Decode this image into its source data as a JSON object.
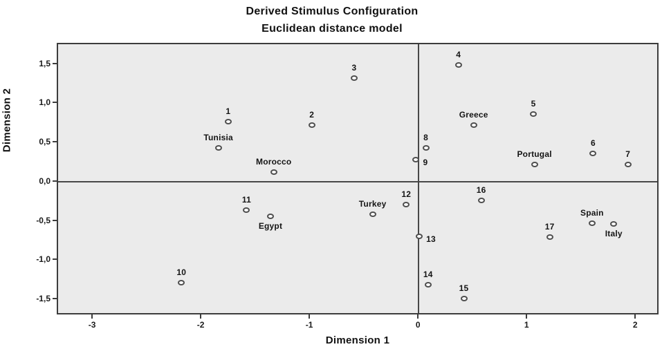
{
  "chart_data": {
    "type": "scatter",
    "title": "Derived Stimulus Configuration",
    "subtitle": "Euclidean distance model",
    "xlabel": "Dimension 1",
    "ylabel": "Dimension 2",
    "xlim": [
      -3.325,
      2.215
    ],
    "ylim": [
      -1.7,
      1.76
    ],
    "grid": false,
    "legend": "none",
    "zero_lines": true,
    "plot_bg_color": "#ebebeb",
    "axis_line_color": "#474747",
    "point_stroke_color": "#4f4f4f",
    "point_fill_color": "#ffffff",
    "text_color": "#141414",
    "x_ticks": {
      "values": [
        -3,
        -2,
        -1,
        0,
        1,
        2
      ],
      "labels": [
        "-3",
        "-2",
        "-1",
        "0",
        "1",
        "2"
      ]
    },
    "y_ticks": {
      "values": [
        1.5,
        1.0,
        0.5,
        0.0,
        -0.5,
        -1.0,
        -1.5
      ],
      "labels": [
        "1,5",
        "1,0",
        "0,5",
        "0,0",
        "-0,5",
        "-1,0",
        "-1,5"
      ]
    },
    "points": [
      {
        "label": "1",
        "x": -1.76,
        "y": 0.77,
        "label_pos": "top"
      },
      {
        "label": "2",
        "x": -0.99,
        "y": 0.73,
        "label_pos": "top"
      },
      {
        "label": "3",
        "x": -0.6,
        "y": 1.33,
        "label_pos": "top"
      },
      {
        "label": "4",
        "x": 0.36,
        "y": 1.5,
        "label_pos": "top"
      },
      {
        "label": "5",
        "x": 1.05,
        "y": 0.87,
        "label_pos": "top"
      },
      {
        "label": "6",
        "x": 1.6,
        "y": 0.37,
        "label_pos": "top"
      },
      {
        "label": "7",
        "x": 1.92,
        "y": 0.23,
        "label_pos": "top"
      },
      {
        "label": "8",
        "x": 0.06,
        "y": 0.44,
        "label_pos": "top"
      },
      {
        "label": "9",
        "x": -0.03,
        "y": 0.29,
        "label_pos": "right"
      },
      {
        "label": "10",
        "x": -2.19,
        "y": -1.28,
        "label_pos": "top"
      },
      {
        "label": "11",
        "x": -1.59,
        "y": -0.35,
        "label_pos": "top"
      },
      {
        "label": "12",
        "x": -0.12,
        "y": -0.28,
        "label_pos": "top"
      },
      {
        "label": "13",
        "x": 0.0,
        "y": -0.69,
        "label_pos": "right"
      },
      {
        "label": "14",
        "x": 0.08,
        "y": -1.3,
        "label_pos": "top"
      },
      {
        "label": "15",
        "x": 0.41,
        "y": -1.48,
        "label_pos": "top"
      },
      {
        "label": "16",
        "x": 0.57,
        "y": -0.23,
        "label_pos": "top"
      },
      {
        "label": "17",
        "x": 1.2,
        "y": -0.7,
        "label_pos": "top"
      },
      {
        "label": "Tunisia",
        "x": -1.85,
        "y": 0.44,
        "label_pos": "top"
      },
      {
        "label": "Morocco",
        "x": -1.34,
        "y": 0.13,
        "label_pos": "top"
      },
      {
        "label": "Egypt",
        "x": -1.37,
        "y": -0.43,
        "label_pos": "bottom"
      },
      {
        "label": "Turkey",
        "x": -0.43,
        "y": -0.41,
        "label_pos": "top"
      },
      {
        "label": "Greece",
        "x": 0.5,
        "y": 0.73,
        "label_pos": "top"
      },
      {
        "label": "Portugal",
        "x": 1.06,
        "y": 0.23,
        "label_pos": "top"
      },
      {
        "label": "Spain",
        "x": 1.59,
        "y": -0.52,
        "label_pos": "top"
      },
      {
        "label": "Italy",
        "x": 1.79,
        "y": -0.53,
        "label_pos": "bottom"
      }
    ]
  }
}
